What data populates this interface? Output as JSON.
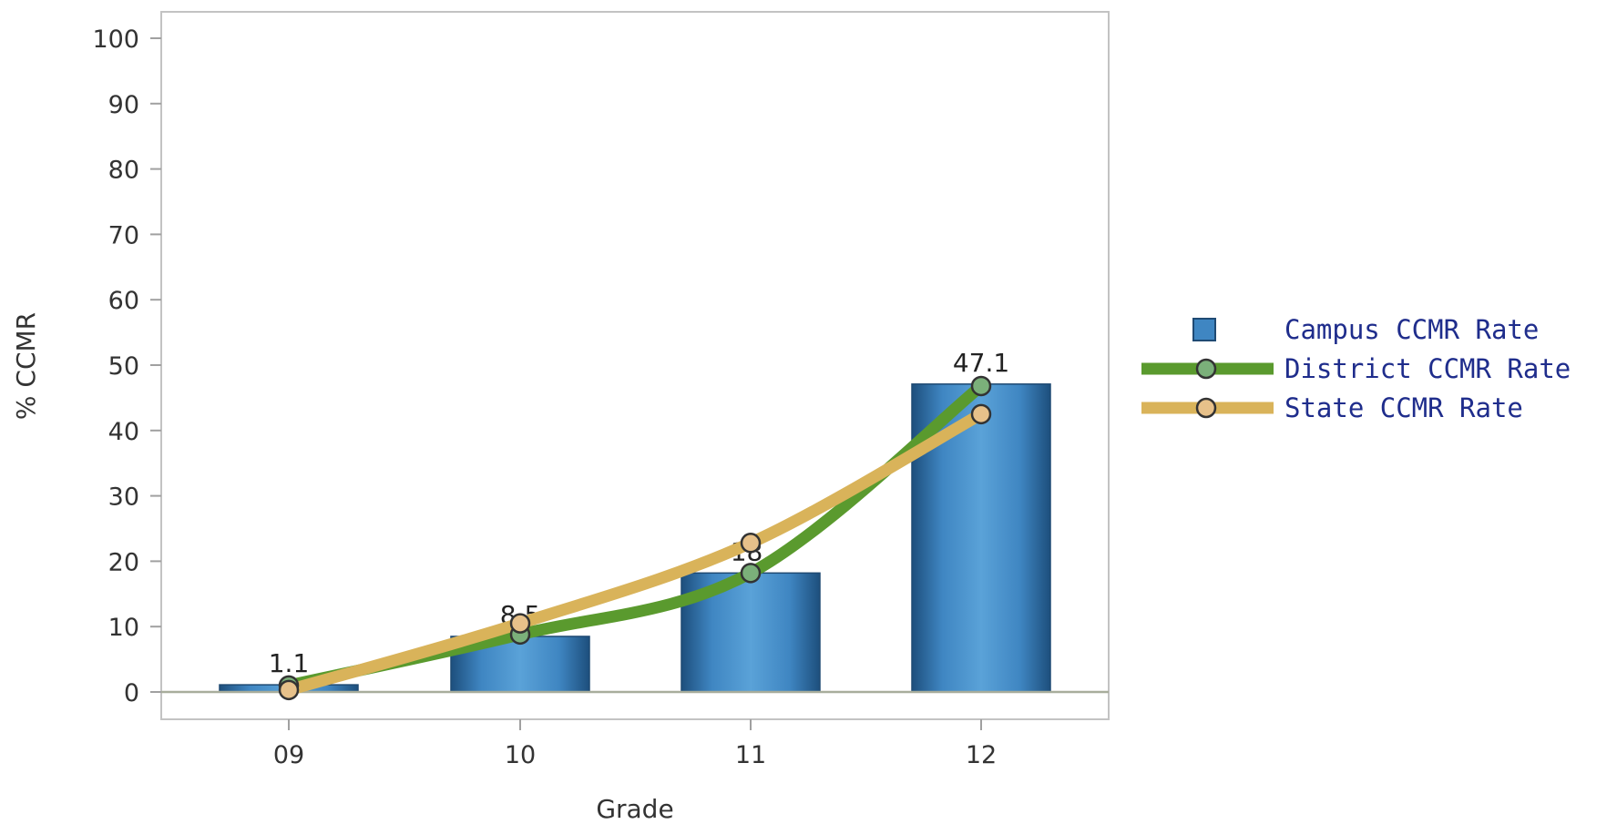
{
  "chart_data": {
    "type": "bar",
    "categories": [
      "09",
      "10",
      "11",
      "12"
    ],
    "xlabel": "Grade",
    "ylabel": "% CCMR",
    "ylim": [
      0,
      100
    ],
    "yticks": [
      0,
      10,
      20,
      30,
      40,
      50,
      60,
      70,
      80,
      90,
      100
    ],
    "grid": false,
    "legend_position": "right",
    "series": [
      {
        "name": "Campus CCMR Rate",
        "kind": "bar",
        "color": "#3b7fb8",
        "values": [
          1.1,
          8.5,
          18.2,
          47.1
        ],
        "labels": [
          "1.1",
          "8.5",
          "18.",
          "47.1"
        ]
      },
      {
        "name": "District CCMR Rate",
        "kind": "line",
        "color": "#5a9a2e",
        "values": [
          1.0,
          8.8,
          18.2,
          46.8
        ]
      },
      {
        "name": "State CCMR Rate",
        "kind": "line",
        "color": "#d9b35a",
        "values": [
          0.3,
          10.5,
          22.8,
          42.5
        ]
      }
    ]
  }
}
